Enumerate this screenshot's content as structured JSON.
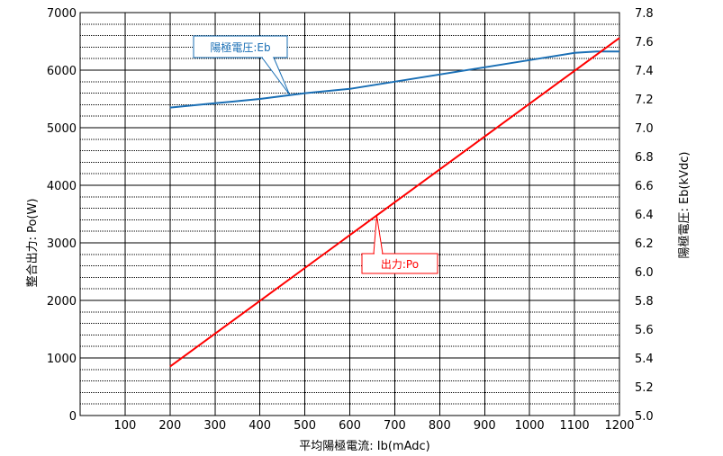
{
  "chart_data": {
    "type": "line",
    "xlabel": "平均陽極電流:  Ib(mAdc)",
    "ylabel_left": "整合出力:  Po(W)",
    "ylabel_right": "陽極電圧:  Eb(kVdc)",
    "xlim": [
      0,
      1200
    ],
    "ylim_left": [
      0,
      7000
    ],
    "ylim_right": [
      5.0,
      7.8
    ],
    "x_ticks": [
      "100",
      "200",
      "300",
      "400",
      "500",
      "600",
      "700",
      "800",
      "900",
      "1000",
      "1100",
      "1200"
    ],
    "x_origin_label": "0",
    "y_left_ticks": [
      "0",
      "1000",
      "2000",
      "3000",
      "4000",
      "5000",
      "6000",
      "7000"
    ],
    "y_right_ticks": [
      "5.0",
      "5.2",
      "5.4",
      "5.6",
      "5.8",
      "6.0",
      "6.2",
      "6.4",
      "6.6",
      "6.8",
      "7.0",
      "7.2",
      "7.4",
      "7.6",
      "7.8"
    ],
    "grid": true,
    "series": [
      {
        "name": "陽極電圧:Eb",
        "axis": "right",
        "color": "#1a6fb5",
        "x": [
          200,
          300,
          400,
          500,
          600,
          700,
          800,
          900,
          1000,
          1100,
          1150,
          1200
        ],
        "y": [
          7.14,
          7.17,
          7.2,
          7.24,
          7.27,
          7.32,
          7.37,
          7.42,
          7.47,
          7.52,
          7.53,
          7.53
        ]
      },
      {
        "name": "出力:Po",
        "axis": "left",
        "color": "#ff0000",
        "x": [
          200,
          1200
        ],
        "y": [
          850,
          6560
        ]
      }
    ]
  }
}
